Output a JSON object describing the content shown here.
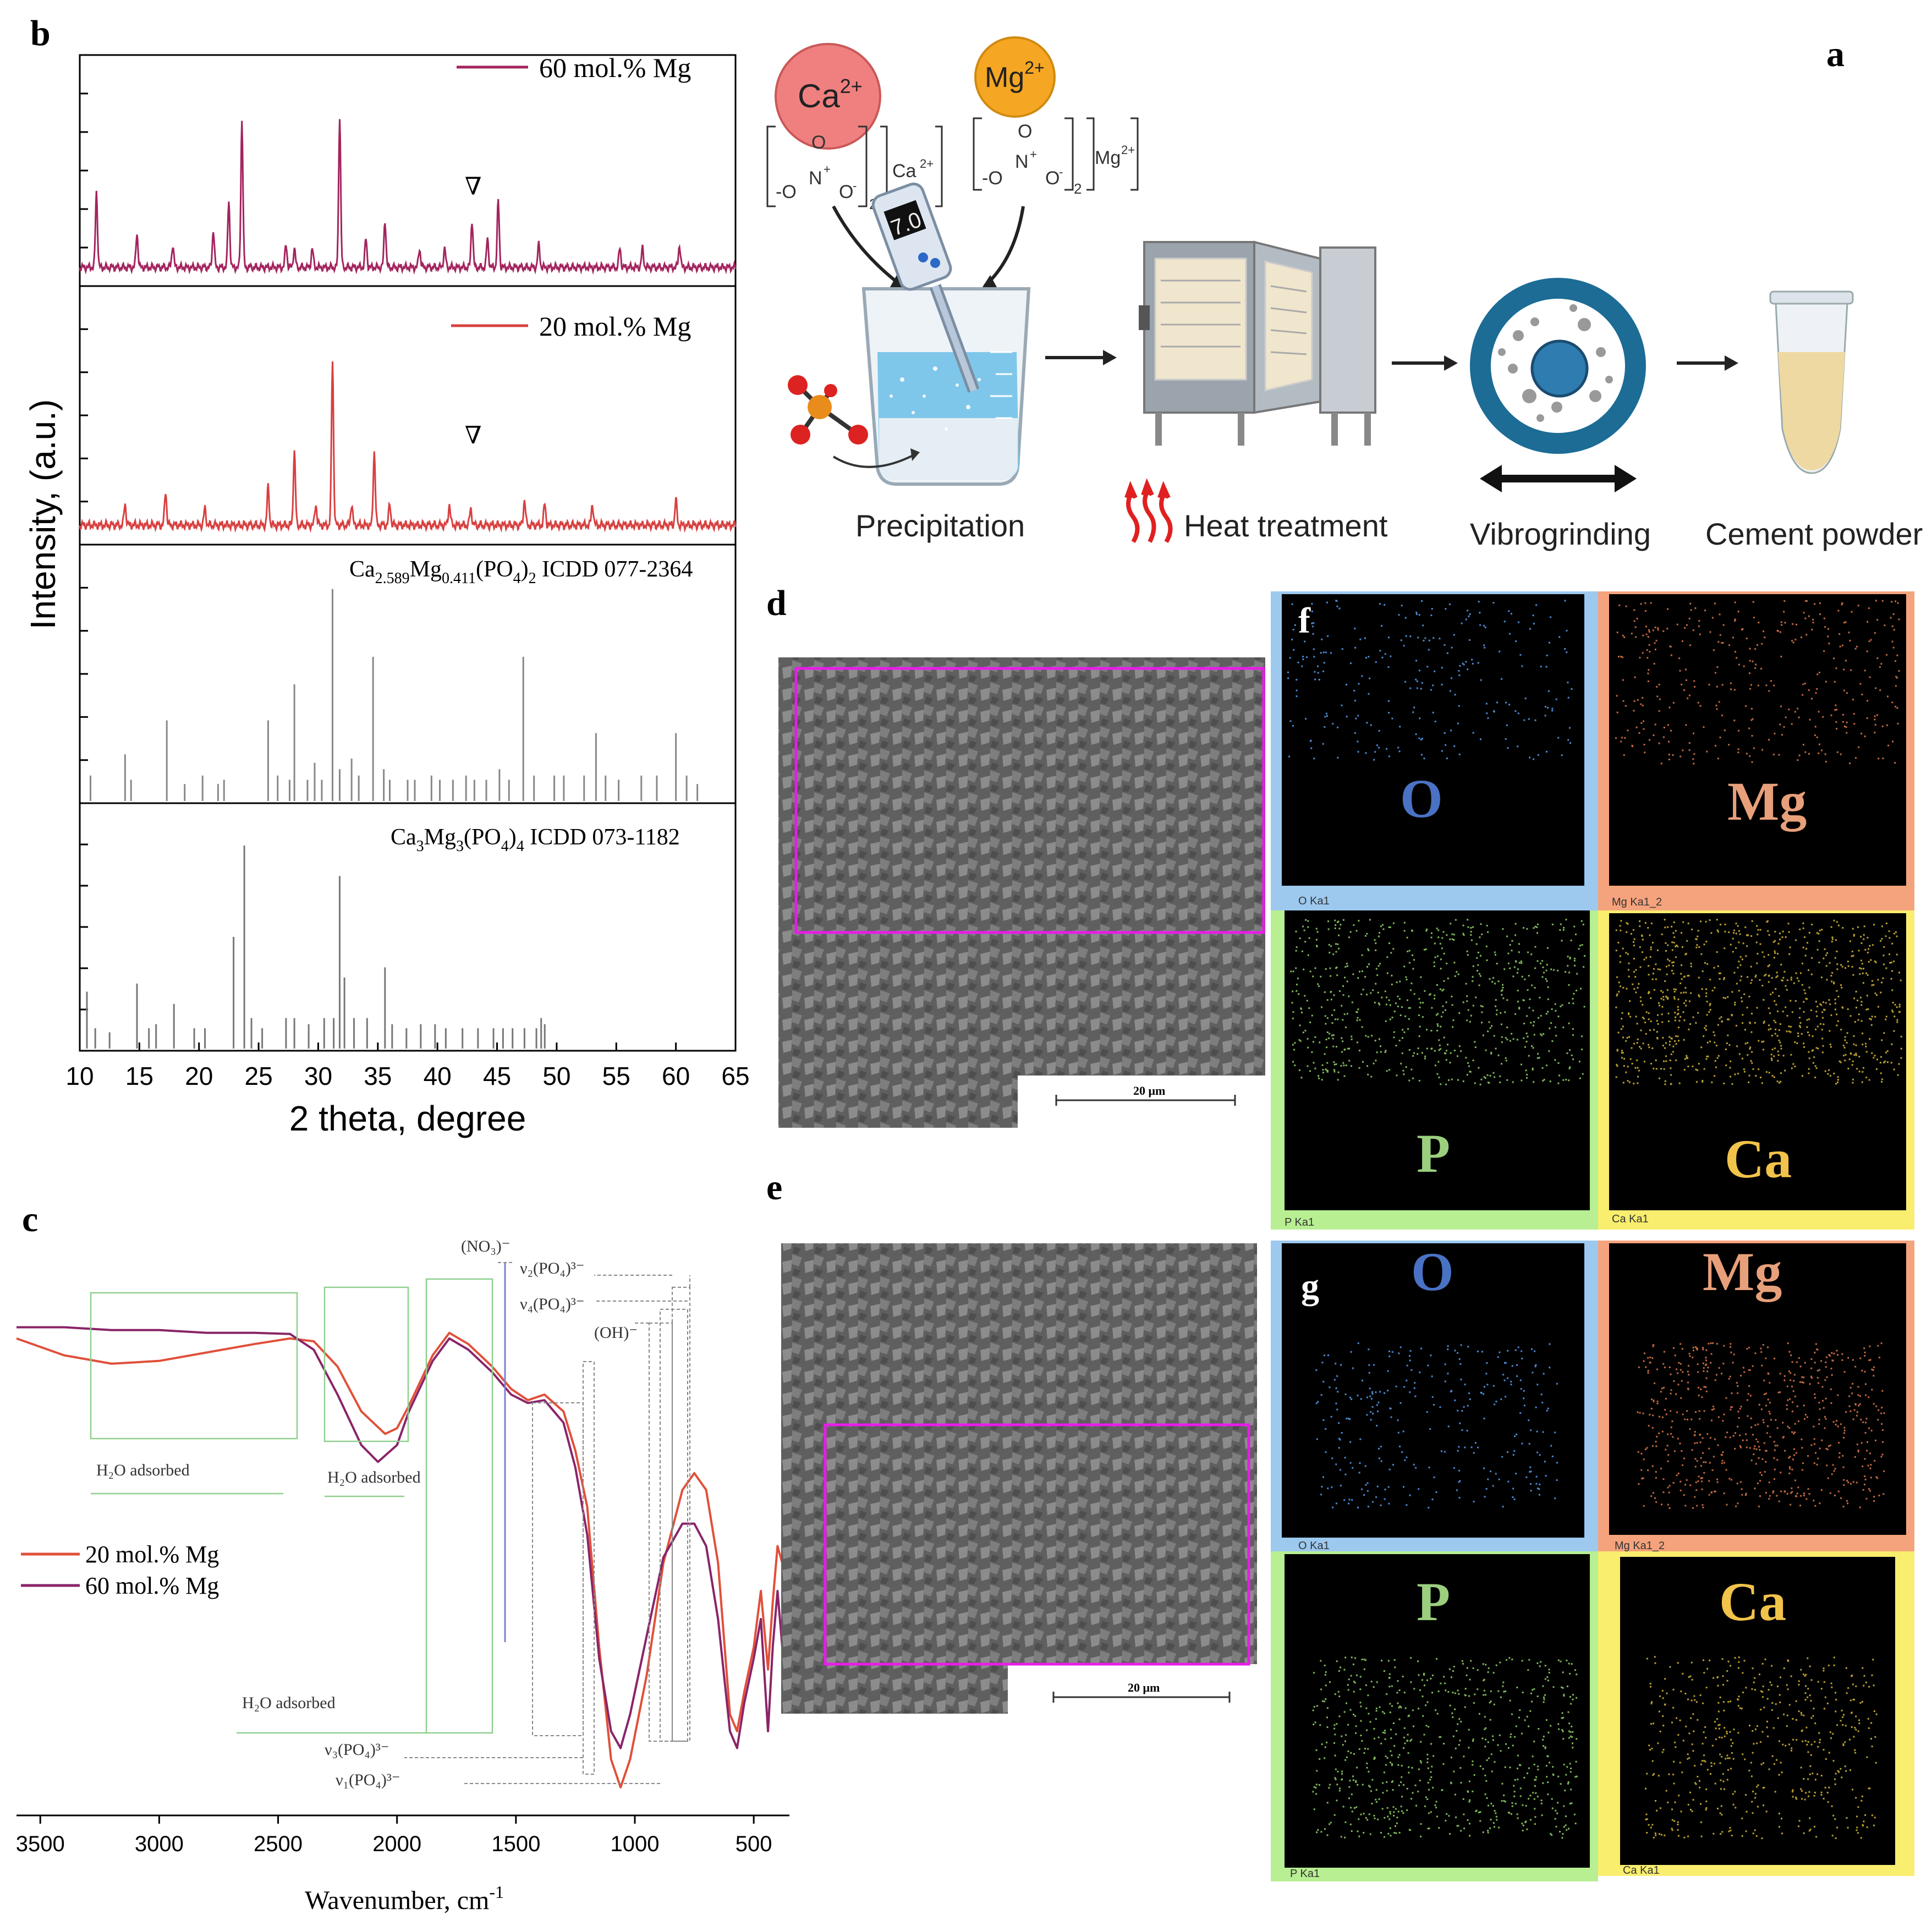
{
  "panels": {
    "a": "a",
    "b": "b",
    "c": "c",
    "d": "d",
    "e": "e",
    "f": "f",
    "g": "g"
  },
  "chart_data": [
    {
      "panel": "b",
      "type": "line",
      "title": "",
      "xlabel": "2 theta, degree",
      "ylabel": "Intensity, (a.u.)",
      "xlim": [
        10,
        65
      ],
      "x_ticks": [
        "10",
        "15",
        "20",
        "25",
        "30",
        "35",
        "40",
        "45",
        "50",
        "55",
        "60",
        "65"
      ],
      "series": [
        {
          "name": "60 mol.% Mg",
          "color": "#a3245e",
          "peaks": [
            [
              11.4,
              0.4
            ],
            [
              14.8,
              0.18
            ],
            [
              17.8,
              0.12
            ],
            [
              21.2,
              0.2
            ],
            [
              22.5,
              0.35
            ],
            [
              23.6,
              0.78
            ],
            [
              27.3,
              0.12
            ],
            [
              28.0,
              0.1
            ],
            [
              29.5,
              0.1
            ],
            [
              31.8,
              0.8
            ],
            [
              34.0,
              0.15
            ],
            [
              35.6,
              0.25
            ],
            [
              38.5,
              0.1
            ],
            [
              40.6,
              0.1
            ],
            [
              42.9,
              0.25
            ],
            [
              44.2,
              0.15
            ],
            [
              45.1,
              0.35
            ],
            [
              48.5,
              0.12
            ],
            [
              55.3,
              0.1
            ],
            [
              57.2,
              0.1
            ],
            [
              60.3,
              0.12
            ]
          ],
          "marker_label": "∇",
          "marker_x": 43.0
        },
        {
          "name": "20 mol.% Mg",
          "color": "#d84040",
          "peaks": [
            [
              13.8,
              0.1
            ],
            [
              17.2,
              0.16
            ],
            [
              20.5,
              0.08
            ],
            [
              25.8,
              0.18
            ],
            [
              28.0,
              0.35
            ],
            [
              29.8,
              0.1
            ],
            [
              31.2,
              0.78
            ],
            [
              32.8,
              0.1
            ],
            [
              34.7,
              0.35
            ],
            [
              36.0,
              0.1
            ],
            [
              41.0,
              0.1
            ],
            [
              42.8,
              0.08
            ],
            [
              47.3,
              0.12
            ],
            [
              49.0,
              0.1
            ],
            [
              53.0,
              0.1
            ],
            [
              60.0,
              0.12
            ]
          ],
          "marker_label": "∇",
          "marker_x": 43.0
        },
        {
          "name": "Ca2.589Mg0.411(PO4)2 ICDD 077-2364",
          "color": "#888888",
          "sticks": [
            [
              10.9,
              0.12
            ],
            [
              13.8,
              0.22
            ],
            [
              14.3,
              0.1
            ],
            [
              17.3,
              0.38
            ],
            [
              18.8,
              0.08
            ],
            [
              20.3,
              0.12
            ],
            [
              21.6,
              0.08
            ],
            [
              22.1,
              0.1
            ],
            [
              25.8,
              0.38
            ],
            [
              26.6,
              0.12
            ],
            [
              27.6,
              0.1
            ],
            [
              28.0,
              0.55
            ],
            [
              29.1,
              0.1
            ],
            [
              29.7,
              0.18
            ],
            [
              30.3,
              0.1
            ],
            [
              31.2,
              1.0
            ],
            [
              31.8,
              0.15
            ],
            [
              32.8,
              0.2
            ],
            [
              33.4,
              0.12
            ],
            [
              34.6,
              0.68
            ],
            [
              35.5,
              0.15
            ],
            [
              36.0,
              0.1
            ],
            [
              37.5,
              0.1
            ],
            [
              38.1,
              0.1
            ],
            [
              39.5,
              0.12
            ],
            [
              40.2,
              0.1
            ],
            [
              41.3,
              0.1
            ],
            [
              42.4,
              0.12
            ],
            [
              43.1,
              0.1
            ],
            [
              44.1,
              0.1
            ],
            [
              45.2,
              0.15
            ],
            [
              46.0,
              0.1
            ],
            [
              47.2,
              0.68
            ],
            [
              48.1,
              0.12
            ],
            [
              49.8,
              0.12
            ],
            [
              50.6,
              0.12
            ],
            [
              52.3,
              0.12
            ],
            [
              53.3,
              0.32
            ],
            [
              54.1,
              0.12
            ],
            [
              55.2,
              0.1
            ],
            [
              57.1,
              0.12
            ],
            [
              58.4,
              0.12
            ],
            [
              60.0,
              0.32
            ],
            [
              60.9,
              0.12
            ],
            [
              61.8,
              0.08
            ]
          ]
        },
        {
          "name": "Ca3Mg3(PO4)4 ICDD 073-1182",
          "color": "#777777",
          "sticks": [
            [
              10.6,
              0.28
            ],
            [
              11.3,
              0.1
            ],
            [
              12.5,
              0.08
            ],
            [
              14.8,
              0.32
            ],
            [
              15.8,
              0.1
            ],
            [
              16.4,
              0.12
            ],
            [
              17.9,
              0.22
            ],
            [
              19.6,
              0.1
            ],
            [
              20.5,
              0.1
            ],
            [
              22.9,
              0.55
            ],
            [
              23.8,
              1.0
            ],
            [
              24.4,
              0.15
            ],
            [
              25.3,
              0.1
            ],
            [
              27.3,
              0.15
            ],
            [
              28.0,
              0.15
            ],
            [
              29.2,
              0.12
            ],
            [
              30.5,
              0.15
            ],
            [
              31.3,
              0.15
            ],
            [
              31.8,
              0.85
            ],
            [
              32.2,
              0.35
            ],
            [
              33.0,
              0.15
            ],
            [
              34.1,
              0.15
            ],
            [
              35.6,
              0.4
            ],
            [
              36.2,
              0.12
            ],
            [
              37.4,
              0.1
            ],
            [
              38.6,
              0.12
            ],
            [
              39.8,
              0.12
            ],
            [
              40.7,
              0.1
            ],
            [
              42.1,
              0.1
            ],
            [
              43.4,
              0.1
            ],
            [
              44.7,
              0.1
            ],
            [
              45.5,
              0.1
            ],
            [
              46.3,
              0.1
            ],
            [
              47.3,
              0.1
            ],
            [
              48.3,
              0.1
            ],
            [
              48.7,
              0.15
            ],
            [
              49.0,
              0.12
            ]
          ]
        }
      ]
    },
    {
      "panel": "c",
      "type": "line",
      "title": "",
      "xlabel": "Wavenumber, cm⁻¹",
      "ylabel": "",
      "xlim": [
        3600,
        350
      ],
      "x_ticks": [
        "3500",
        "3000",
        "2500",
        "2000",
        "1500",
        "1000",
        "500"
      ],
      "series": [
        {
          "name": "20 mol.% Mg",
          "color": "#e0503a",
          "points": [
            [
              3600,
              0.85
            ],
            [
              3400,
              0.82
            ],
            [
              3200,
              0.805
            ],
            [
              3000,
              0.81
            ],
            [
              2800,
              0.825
            ],
            [
              2600,
              0.84
            ],
            [
              2450,
              0.85
            ],
            [
              2350,
              0.845
            ],
            [
              2250,
              0.8
            ],
            [
              2150,
              0.72
            ],
            [
              2050,
              0.68
            ],
            [
              2000,
              0.69
            ],
            [
              1950,
              0.73
            ],
            [
              1850,
              0.82
            ],
            [
              1780,
              0.86
            ],
            [
              1700,
              0.84
            ],
            [
              1600,
              0.8
            ],
            [
              1520,
              0.76
            ],
            [
              1450,
              0.74
            ],
            [
              1380,
              0.75
            ],
            [
              1300,
              0.72
            ],
            [
              1250,
              0.65
            ],
            [
              1200,
              0.55
            ],
            [
              1150,
              0.3
            ],
            [
              1100,
              0.1
            ],
            [
              1060,
              0.05
            ],
            [
              1020,
              0.1
            ],
            [
              950,
              0.25
            ],
            [
              880,
              0.45
            ],
            [
              800,
              0.58
            ],
            [
              750,
              0.61
            ],
            [
              700,
              0.58
            ],
            [
              650,
              0.45
            ],
            [
              600,
              0.18
            ],
            [
              570,
              0.15
            ],
            [
              540,
              0.22
            ],
            [
              500,
              0.3
            ],
            [
              470,
              0.4
            ],
            [
              440,
              0.26
            ],
            [
              420,
              0.38
            ],
            [
              400,
              0.48
            ],
            [
              380,
              0.45
            ],
            [
              370,
              0.38
            ]
          ]
        },
        {
          "name": "60 mol.% Mg",
          "color": "#8a2468",
          "points": [
            [
              3600,
              0.87
            ],
            [
              3400,
              0.87
            ],
            [
              3200,
              0.865
            ],
            [
              3000,
              0.865
            ],
            [
              2800,
              0.86
            ],
            [
              2600,
              0.86
            ],
            [
              2450,
              0.858
            ],
            [
              2350,
              0.83
            ],
            [
              2250,
              0.75
            ],
            [
              2150,
              0.66
            ],
            [
              2080,
              0.63
            ],
            [
              2000,
              0.66
            ],
            [
              1950,
              0.72
            ],
            [
              1850,
              0.81
            ],
            [
              1780,
              0.85
            ],
            [
              1700,
              0.83
            ],
            [
              1600,
              0.79
            ],
            [
              1520,
              0.75
            ],
            [
              1450,
              0.735
            ],
            [
              1380,
              0.74
            ],
            [
              1300,
              0.7
            ],
            [
              1250,
              0.62
            ],
            [
              1200,
              0.5
            ],
            [
              1150,
              0.28
            ],
            [
              1100,
              0.15
            ],
            [
              1060,
              0.12
            ],
            [
              1020,
              0.18
            ],
            [
              950,
              0.32
            ],
            [
              880,
              0.46
            ],
            [
              800,
              0.52
            ],
            [
              750,
              0.52
            ],
            [
              700,
              0.48
            ],
            [
              650,
              0.35
            ],
            [
              600,
              0.15
            ],
            [
              570,
              0.12
            ],
            [
              540,
              0.2
            ],
            [
              500,
              0.28
            ],
            [
              470,
              0.35
            ],
            [
              440,
              0.15
            ],
            [
              420,
              0.3
            ],
            [
              400,
              0.4
            ],
            [
              380,
              0.3
            ],
            [
              370,
              0.2
            ]
          ]
        }
      ],
      "annotations": {
        "h2o_1": "H₂O adsorbed",
        "h2o_2": "H₂O adsorbed",
        "h2o_3": "H₂O adsorbed",
        "no3": "(NO₃)⁻",
        "v2": "ν₂(PO₄)³⁻",
        "v4": "ν₄(PO₄)³⁻",
        "oh": "(OH)⁻",
        "v3": "ν₃(PO₄)³⁻",
        "v1": "ν₁(PO₄)³⁻"
      }
    }
  ],
  "panel_b": {
    "legend_60": "60 mol.% Mg",
    "legend_20": "20 mol.% Mg",
    "ref1_a": "Ca",
    "ref1_s1": "2.589",
    "ref1_b": "Mg",
    "ref1_s2": "0.411",
    "ref1_c": "(PO",
    "ref1_s3": "4",
    "ref1_d": ")",
    "ref1_s4": "2",
    "ref1_e": " ICDD 077-2364",
    "ref2_a": "Ca",
    "ref2_s1": "3",
    "ref2_b": "Mg",
    "ref2_s2": "3",
    "ref2_c": "(PO",
    "ref2_s3": "4",
    "ref2_d": ")",
    "ref2_s4": "4",
    "ref2_e": " ICDD 073-1182"
  },
  "panel_a": {
    "ca_ion": "Ca",
    "ca_charge": "2+",
    "mg_ion": "Mg",
    "mg_charge": "2+",
    "ph_value": "7.0",
    "ca_salt_cation": "Ca",
    "ca_salt_charge": "2+",
    "mg_salt_cation": "Mg",
    "mg_salt_charge": "2+",
    "nitrate_sub": "2",
    "step1": "Precipitation",
    "step2": "Heat treatment",
    "step3": "Vibrogrinding",
    "step4": "Cement powder"
  },
  "panel_d": {
    "scale": "20 μm"
  },
  "panel_e": {
    "scale": "20 μm"
  },
  "panel_f": {
    "O": "O",
    "Mg": "Mg",
    "P": "P",
    "Ca": "Ca",
    "cap_O": "O Ka1",
    "cap_Mg": "Mg Ka1_2",
    "cap_P": "P Ka1",
    "cap_Ca": "Ca Ka1"
  },
  "panel_g": {
    "O": "O",
    "Mg": "Mg",
    "P": "P",
    "Ca": "Ca",
    "cap_O": "O Ka1",
    "cap_Mg": "Mg Ka1_2",
    "cap_P": "P Ka1",
    "cap_Ca": "Ca Ka1"
  },
  "colors": {
    "O_frame": "#9dc9ef",
    "Mg_frame": "#f5a37c",
    "P_frame": "#b8ef92",
    "Ca_frame": "#f9ee6e",
    "O_text": "#4a72c4",
    "Mg_text": "#e8a07a",
    "P_text": "#9bcf7e",
    "Ca_text": "#f2c34a"
  }
}
